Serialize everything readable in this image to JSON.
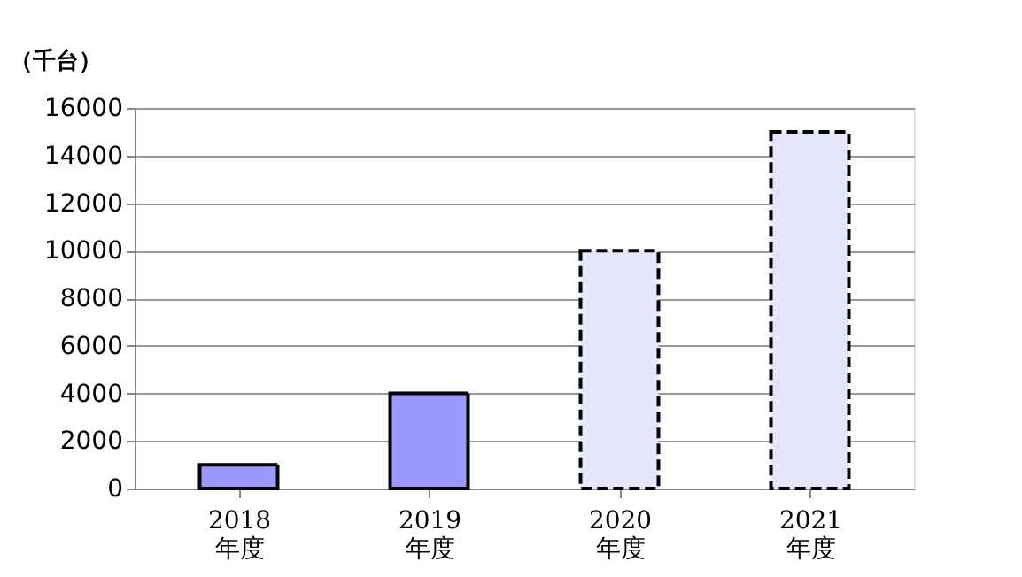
{
  "chart_data": {
    "type": "bar",
    "ylabel": "（千台）",
    "categories": [
      "2018\n年度",
      "2019\n年度",
      "2020\n年度",
      "2021\n年度"
    ],
    "series": [
      {
        "color": "#9999ff",
        "line_style": "solid",
        "values": [
          1000,
          4000,
          null,
          null
        ]
      },
      {
        "color": "#e6e6fa",
        "line_style": "dashed",
        "values": [
          null,
          null,
          10000,
          15000
        ]
      }
    ],
    "ylim": [
      0,
      16000
    ],
    "yticks": [
      0,
      2000,
      4000,
      6000,
      8000,
      10000,
      12000,
      14000,
      16000
    ],
    "grid": "y"
  }
}
